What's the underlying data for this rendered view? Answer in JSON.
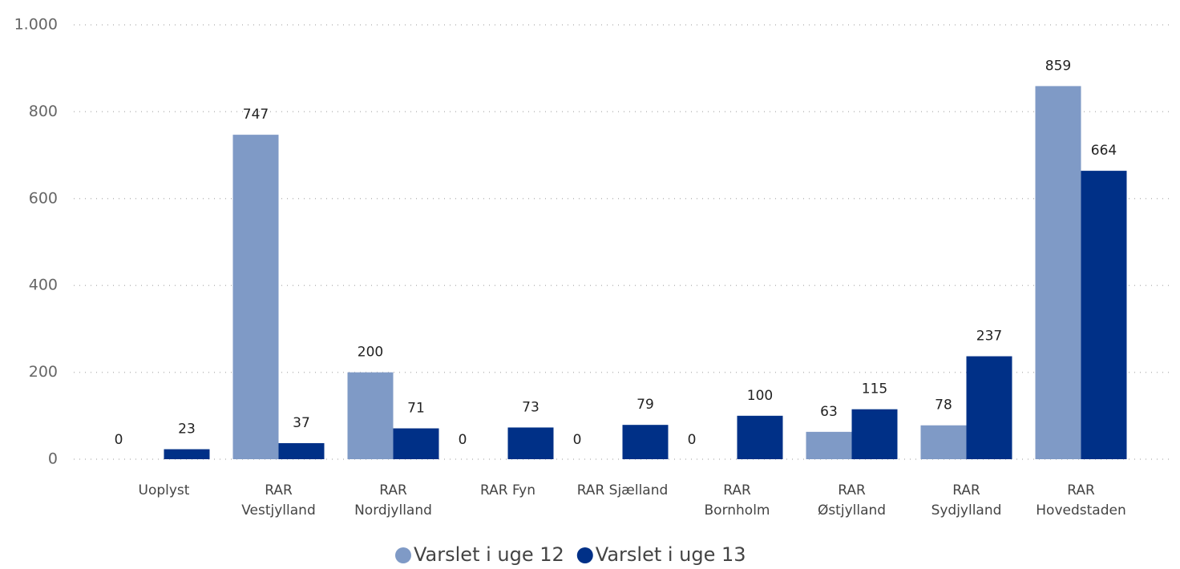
{
  "chart_data": {
    "type": "bar",
    "categories": [
      [
        "Uoplyst"
      ],
      [
        "RAR",
        "Vestjylland"
      ],
      [
        "RAR",
        "Nordjylland"
      ],
      [
        "RAR Fyn"
      ],
      [
        "RAR Sjælland"
      ],
      [
        "RAR",
        "Bornholm"
      ],
      [
        "RAR",
        "Østjylland"
      ],
      [
        "RAR",
        "Sydjylland"
      ],
      [
        "RAR",
        "Hovedstaden"
      ]
    ],
    "series": [
      {
        "name": "Varslet i uge 12",
        "color": "#7f9ac6",
        "values": [
          0,
          747,
          200,
          0,
          0,
          0,
          63,
          78,
          859
        ]
      },
      {
        "name": "Varslet i uge 13",
        "color": "#003087",
        "values": [
          23,
          37,
          71,
          73,
          79,
          100,
          115,
          237,
          664
        ]
      }
    ],
    "ylim": [
      0,
      1000
    ],
    "yticks": [
      0,
      200,
      400,
      600,
      800,
      {
        "value": 1000,
        "label": "1.000"
      }
    ],
    "grid": true,
    "legend": "bottom"
  }
}
